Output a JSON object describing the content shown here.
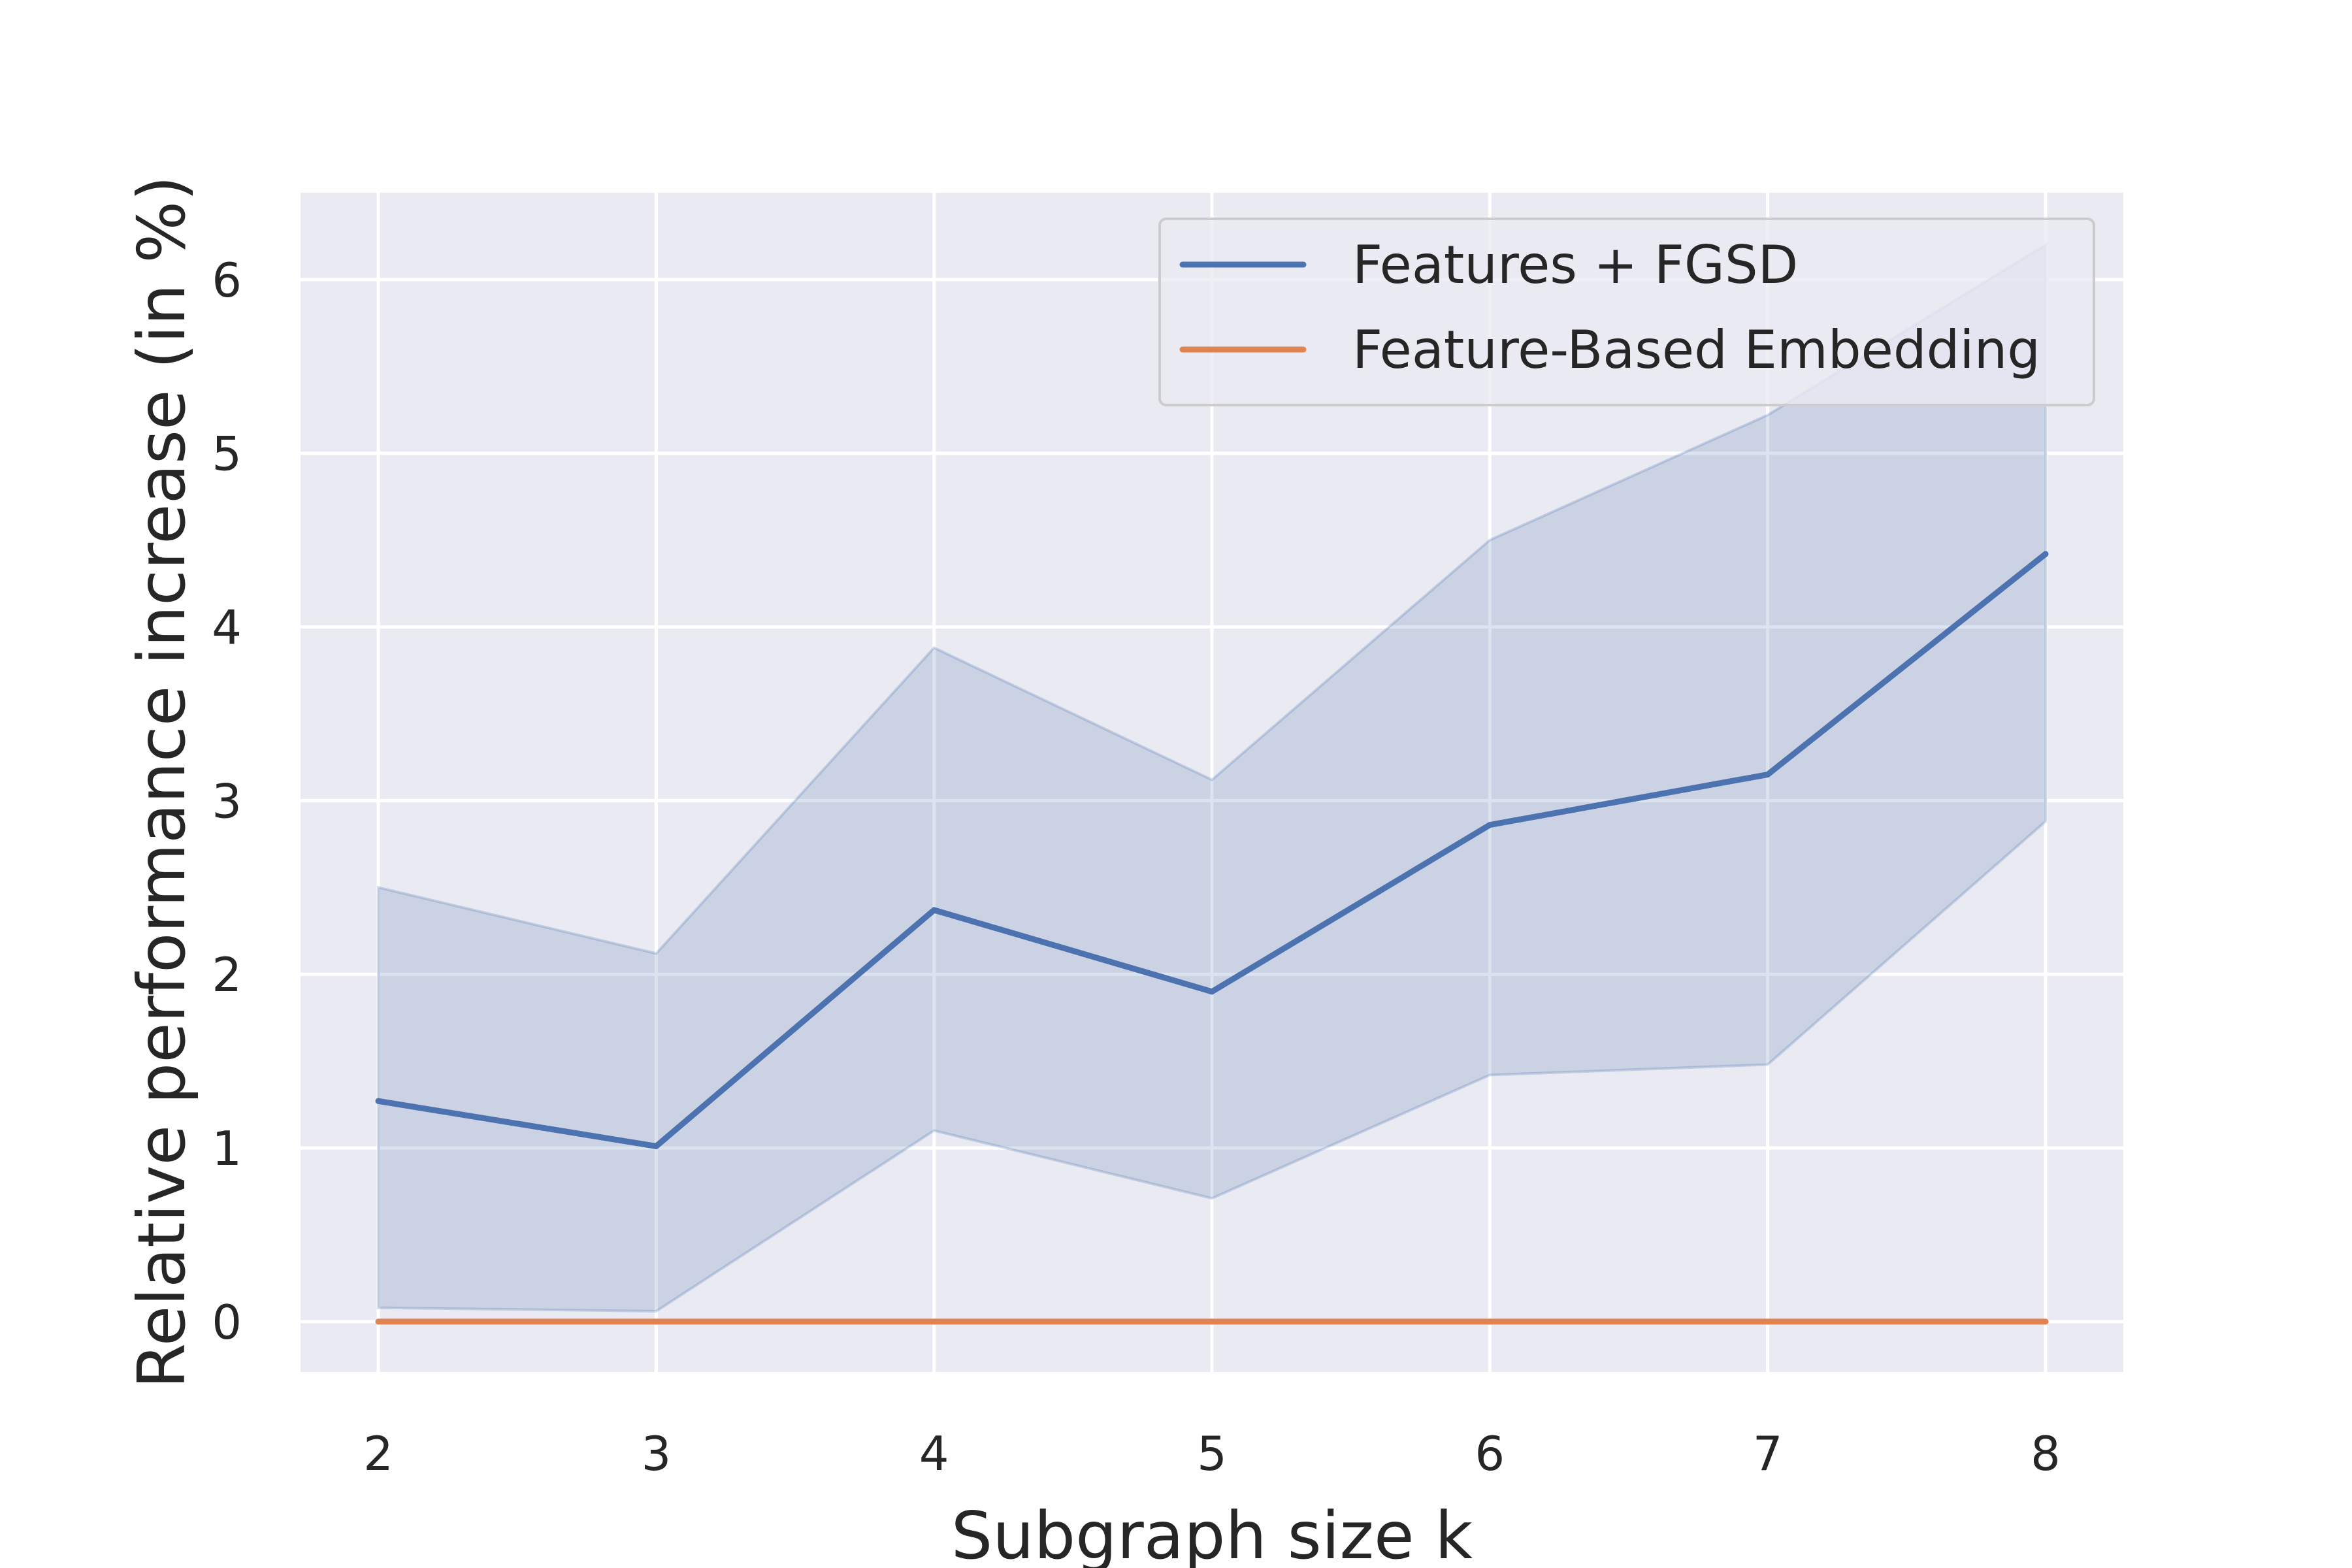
{
  "chart_data": {
    "type": "line",
    "title": "",
    "xlabel": "Subgraph size k",
    "ylabel": "Relative performance increase (in %)",
    "x": [
      2,
      3,
      4,
      5,
      6,
      7,
      8
    ],
    "xticks": [
      "2",
      "3",
      "4",
      "5",
      "6",
      "7",
      "8"
    ],
    "yticks": [
      "0",
      "1",
      "2",
      "3",
      "4",
      "5",
      "6"
    ],
    "xlim": [
      1.72,
      8.28
    ],
    "ylim": [
      -0.29,
      6.5
    ],
    "grid": true,
    "legend_position": "top-right",
    "series": [
      {
        "name": "Features + FGSD",
        "color": "#4c72b0",
        "values": [
          1.27,
          1.01,
          2.37,
          1.9,
          2.86,
          3.15,
          4.42
        ],
        "ci_lower": [
          0.08,
          0.06,
          1.1,
          0.71,
          1.42,
          1.48,
          2.88
        ],
        "ci_upper": [
          2.5,
          2.12,
          3.88,
          3.12,
          4.5,
          5.22,
          6.2
        ]
      },
      {
        "name": "Feature-Based Embedding",
        "color": "#dd8452",
        "values": [
          0,
          0,
          0,
          0,
          0,
          0,
          0
        ]
      }
    ]
  }
}
